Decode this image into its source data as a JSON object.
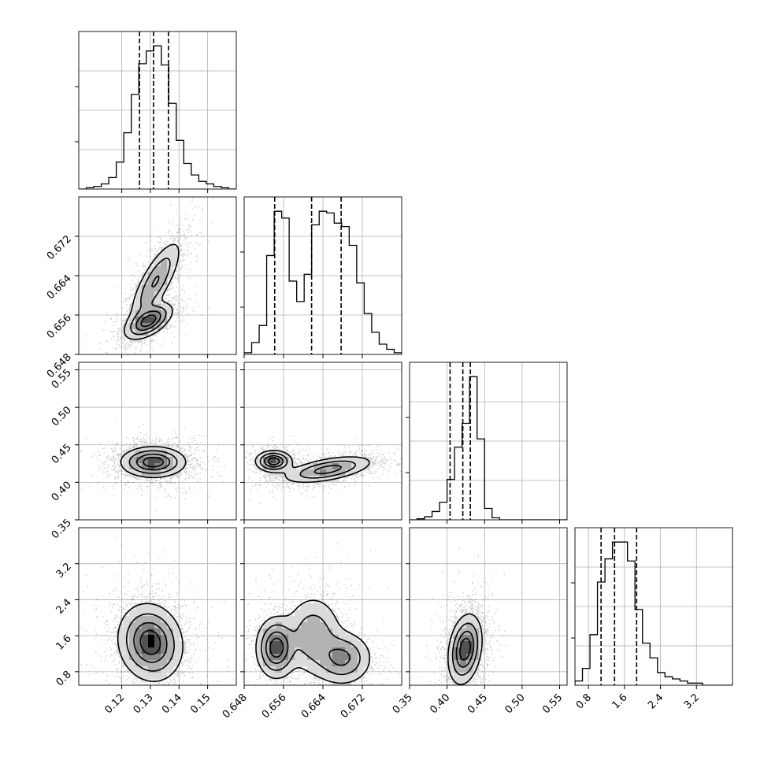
{
  "chart_data": {
    "type": "corner",
    "parameters": [
      "",
      "",
      "",
      ""
    ],
    "grid": true,
    "colors": {
      "line": "#000000",
      "grid": "#b0b0b0",
      "points": "#000000",
      "background": "#ffffff"
    },
    "ranges": [
      [
        0.105,
        0.16
      ],
      [
        0.648,
        0.68
      ],
      [
        0.35,
        0.56
      ],
      [
        0.5,
        4.0
      ]
    ],
    "ticks": [
      [
        0.12,
        0.13,
        0.14,
        0.15
      ],
      [
        0.648,
        0.656,
        0.664,
        0.672
      ],
      [
        0.35,
        0.4,
        0.45,
        0.5,
        0.55
      ],
      [
        0.8,
        1.6,
        2.4,
        3.2
      ]
    ],
    "tick_labels": [
      [
        "0.12",
        "0.13",
        "0.14",
        "0.15"
      ],
      [
        "0.648",
        "0.656",
        "0.664",
        "0.672"
      ],
      [
        "0.35",
        "0.40",
        "0.45",
        "0.50",
        "0.55"
      ],
      [
        "0.8",
        "1.6",
        "2.4",
        "3.2"
      ]
    ],
    "quantiles": [
      [
        0.1262,
        0.1311,
        0.1363
      ],
      [
        0.6542,
        0.6617,
        0.6677
      ],
      [
        0.404,
        0.421,
        0.431
      ],
      [
        1.08,
        1.38,
        1.87
      ]
    ],
    "histograms": [
      [
        0,
        1,
        2,
        4,
        9,
        21,
        44,
        74,
        98,
        108,
        112,
        97,
        67,
        38,
        20,
        11,
        6,
        4,
        2,
        1,
        0
      ],
      [
        1,
        7,
        17,
        58,
        84,
        80,
        43,
        31,
        47,
        76,
        84,
        83,
        77,
        75,
        64,
        42,
        24,
        13,
        6,
        3,
        1
      ],
      [
        0,
        1,
        3,
        8,
        17,
        39,
        70,
        93,
        138,
        78,
        11,
        2,
        0,
        0,
        0,
        0,
        0,
        0,
        0,
        0,
        0
      ],
      [
        2,
        8,
        24,
        49,
        60,
        68,
        68,
        59,
        36,
        20,
        13,
        6,
        4,
        3,
        2,
        1,
        1,
        0,
        0,
        0,
        0
      ]
    ],
    "modes": [
      [
        {
          "w": 0.55,
          "mean": [
            0.1318,
            0.6628
          ],
          "sd": [
            0.0045,
            0.0042
          ],
          "rho": 0.78
        },
        {
          "w": 0.45,
          "mean": [
            0.1295,
            0.6548
          ],
          "sd": [
            0.004,
            0.0018
          ],
          "rho": 0.55
        }
      ],
      [
        {
          "w": 1.0,
          "mean": [
            0.131,
            0.427
          ],
          "sd": [
            0.0055,
            0.01
          ],
          "rho": 0.0
        }
      ],
      [
        {
          "w": 0.35,
          "mean": [
            0.654,
            0.428
          ],
          "sd": [
            0.0018,
            0.007
          ],
          "rho": 0.0
        },
        {
          "w": 0.65,
          "mean": [
            0.665,
            0.417
          ],
          "sd": [
            0.0045,
            0.009
          ],
          "rho": 0.55
        }
      ],
      [
        {
          "w": 1.0,
          "mean": [
            0.13,
            1.45
          ],
          "sd": [
            0.0055,
            0.42
          ],
          "rho": -0.1
        }
      ],
      [
        {
          "w": 0.34,
          "mean": [
            0.6545,
            1.33
          ],
          "sd": [
            0.002,
            0.33
          ],
          "rho": 0.0
        },
        {
          "w": 0.36,
          "mean": [
            0.662,
            1.62
          ],
          "sd": [
            0.003,
            0.45
          ],
          "rho": 0.0
        },
        {
          "w": 0.3,
          "mean": [
            0.668,
            1.1
          ],
          "sd": [
            0.003,
            0.3
          ],
          "rho": 0.0
        }
      ],
      [
        {
          "w": 1.0,
          "mean": [
            0.424,
            1.3
          ],
          "sd": [
            0.011,
            0.38
          ],
          "rho": 0.25
        }
      ]
    ]
  }
}
